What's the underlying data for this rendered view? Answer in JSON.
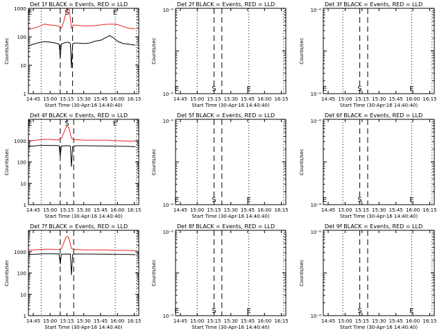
{
  "figure": {
    "background": "#ffffff",
    "axis_color": "#000000",
    "series_colors": {
      "Events": "#000000",
      "LLD": "#e8231f"
    }
  },
  "chart_data": [
    {
      "type": "line",
      "title": "Det 1f BLACK = Events, RED = LLD",
      "xlabel": "Start Time (30-Apr-16 14:40:40)",
      "ylabel": "Counts/sec",
      "xticks": [
        "14:45",
        "15:00",
        "15:15",
        "15:30",
        "15:45",
        "16:00",
        "16:15"
      ],
      "yscale": "log",
      "ylim": [
        1,
        1000
      ],
      "yticks": [
        "1",
        "10",
        "100",
        "1000"
      ],
      "markers": [
        {
          "label": "E",
          "time": "14:42",
          "line": "none",
          "pos": "top"
        },
        {
          "label": "",
          "time": "14:52",
          "line": "dotted",
          "pos": "top"
        },
        {
          "label": "",
          "time": "15:09",
          "line": "dashed",
          "pos": "top"
        },
        {
          "label": "S",
          "time": "15:15",
          "line": "none",
          "pos": "top"
        },
        {
          "label": "",
          "time": "15:20",
          "line": "dashed",
          "pos": "top"
        },
        {
          "label": "E",
          "time": "15:58",
          "line": "dotted",
          "pos": "top"
        },
        {
          "label": "",
          "time": "16:17",
          "line": "dotted",
          "pos": "top"
        }
      ],
      "series": [
        {
          "name": "LLD",
          "color": "#e8231f",
          "times": [
            "14:41",
            "14:45",
            "14:50",
            "14:55",
            "15:00",
            "15:05",
            "15:08",
            "15:10",
            "15:12",
            "15:14",
            "15:16",
            "15:17",
            "15:18",
            "15:19",
            "15:21",
            "15:25",
            "15:30",
            "15:35",
            "15:40",
            "15:45",
            "15:50",
            "15:55",
            "16:00",
            "16:05",
            "16:10",
            "16:16"
          ],
          "values": [
            180,
            200,
            230,
            280,
            260,
            250,
            230,
            200,
            330,
            650,
            1000,
            900,
            420,
            200,
            260,
            250,
            240,
            240,
            250,
            260,
            275,
            280,
            270,
            230,
            200,
            190
          ]
        },
        {
          "name": "Events",
          "color": "#000000",
          "times": [
            "14:41",
            "14:45",
            "14:50",
            "14:55",
            "15:00",
            "15:05",
            "15:08",
            "15:09",
            "15:10",
            "15:12",
            "15:14",
            "15:16",
            "15:18",
            "15:19",
            "15:20",
            "15:21",
            "15:25",
            "15:30",
            "15:35",
            "15:40",
            "15:45",
            "15:50",
            "15:53",
            "15:56",
            "16:00",
            "16:05",
            "16:10",
            "16:16"
          ],
          "values": [
            48,
            55,
            62,
            68,
            65,
            60,
            55,
            18,
            55,
            60,
            62,
            65,
            58,
            8,
            55,
            60,
            60,
            58,
            60,
            70,
            75,
            95,
            110,
            95,
            70,
            58,
            55,
            50
          ]
        }
      ]
    },
    {
      "type": "line",
      "title": "Det 2f BLACK = Events, RED = LLD",
      "xlabel": "Start Time (30-Apr-16 14:40:40)",
      "ylabel": "Counts/sec",
      "xticks": [
        "14:45",
        "15:00",
        "15:15",
        "15:30",
        "15:45",
        "16:00",
        "16:15"
      ],
      "yscale": "log",
      "ylim": [
        1e-08,
        1e-06
      ],
      "ylim_display": [
        "10⁻⁸",
        "10⁻⁶"
      ],
      "markers": [
        {
          "label": "E",
          "time": "14:42",
          "line": "none",
          "pos": "bottom"
        },
        {
          "label": "",
          "time": "15:00",
          "line": "dotted",
          "pos": "bottom"
        },
        {
          "label": "S",
          "time": "15:15",
          "line": "dashed",
          "pos": "bottom"
        },
        {
          "label": "",
          "time": "15:22",
          "line": "dashed",
          "pos": "bottom"
        },
        {
          "label": "E",
          "time": "15:46",
          "line": "dotted",
          "pos": "bottom"
        },
        {
          "label": "",
          "time": "16:17",
          "line": "dotted",
          "pos": "bottom"
        }
      ],
      "series": []
    },
    {
      "type": "line",
      "title": "Det 3f BLACK = Events, RED = LLD",
      "xlabel": "Start Time (30-Apr-16 14:40:40)",
      "ylabel": "Counts/sec",
      "xticks": [
        "14:45",
        "15:00",
        "15:15",
        "15:30",
        "15:45",
        "16:00",
        "16:15"
      ],
      "yscale": "log",
      "ylim": [
        1e-08,
        1e-06
      ],
      "ylim_display": [
        "10⁻⁸",
        "10⁻⁶"
      ],
      "markers": [
        {
          "label": "E",
          "time": "14:42",
          "line": "none",
          "pos": "bottom"
        },
        {
          "label": "",
          "time": "14:58",
          "line": "dotted",
          "pos": "bottom"
        },
        {
          "label": "S",
          "time": "15:13",
          "line": "dashed",
          "pos": "bottom"
        },
        {
          "label": "",
          "time": "15:20",
          "line": "dashed",
          "pos": "bottom"
        },
        {
          "label": "E",
          "time": "15:59",
          "line": "dotted",
          "pos": "bottom"
        },
        {
          "label": "",
          "time": "16:17",
          "line": "dotted",
          "pos": "bottom"
        }
      ],
      "series": []
    },
    {
      "type": "line",
      "title": "Det 4f BLACK = Events, RED = LLD",
      "xlabel": "Start Time (30-Apr-16 14:40:40)",
      "ylabel": "Counts/sec",
      "xticks": [
        "14:45",
        "15:00",
        "15:15",
        "15:30",
        "15:45",
        "16:00",
        "16:15"
      ],
      "yscale": "log",
      "ylim": [
        1,
        10000
      ],
      "yticks": [
        "1",
        "10",
        "100",
        "1000"
      ],
      "markers": [
        {
          "label": "E",
          "time": "14:42",
          "line": "none",
          "pos": "top"
        },
        {
          "label": "",
          "time": "14:52",
          "line": "dotted",
          "pos": "top"
        },
        {
          "label": "",
          "time": "15:09",
          "line": "dashed",
          "pos": "top"
        },
        {
          "label": "S",
          "time": "15:15",
          "line": "none",
          "pos": "top"
        },
        {
          "label": "",
          "time": "15:21",
          "line": "dashed",
          "pos": "top"
        },
        {
          "label": "E",
          "time": "15:58",
          "line": "dotted",
          "pos": "top"
        },
        {
          "label": "",
          "time": "16:17",
          "line": "dotted",
          "pos": "top"
        }
      ],
      "series": [
        {
          "name": "LLD",
          "color": "#e8231f",
          "times": [
            "14:41",
            "14:45",
            "14:50",
            "14:55",
            "15:00",
            "15:05",
            "15:08",
            "15:10",
            "15:12",
            "15:14",
            "15:15",
            "15:16",
            "15:17",
            "15:18",
            "15:19",
            "15:21",
            "15:25",
            "15:30",
            "15:40",
            "15:50",
            "16:00",
            "16:10",
            "16:16"
          ],
          "values": [
            950,
            1000,
            1100,
            1150,
            1150,
            1100,
            1100,
            1300,
            2200,
            4000,
            4800,
            4600,
            3500,
            2200,
            1300,
            1100,
            1100,
            1050,
            1050,
            1050,
            1000,
            950,
            950
          ]
        },
        {
          "name": "Events",
          "color": "#000000",
          "times": [
            "14:41",
            "14:45",
            "14:50",
            "14:55",
            "15:00",
            "15:05",
            "15:08",
            "15:09",
            "15:10",
            "15:12",
            "15:15",
            "15:18",
            "15:19",
            "15:20",
            "15:21",
            "15:25",
            "15:30",
            "15:40",
            "15:50",
            "16:00",
            "16:10",
            "16:16"
          ],
          "values": [
            540,
            560,
            590,
            600,
            600,
            590,
            580,
            180,
            560,
            570,
            580,
            570,
            60,
            520,
            560,
            580,
            580,
            570,
            560,
            550,
            540,
            520
          ]
        }
      ]
    },
    {
      "type": "line",
      "title": "Det 5f BLACK = Events, RED = LLD",
      "xlabel": "Start Time (30-Apr-16 14:40:40)",
      "ylabel": "Counts/sec",
      "xticks": [
        "14:45",
        "15:00",
        "15:15",
        "15:30",
        "15:45",
        "16:00",
        "16:15"
      ],
      "yscale": "log",
      "ylim": [
        1e-08,
        1e-06
      ],
      "ylim_display": [
        "10⁻⁸",
        "10⁻⁶"
      ],
      "markers": [
        {
          "label": "E",
          "time": "14:42",
          "line": "none",
          "pos": "bottom"
        },
        {
          "label": "",
          "time": "15:00",
          "line": "dotted",
          "pos": "bottom"
        },
        {
          "label": "S",
          "time": "15:15",
          "line": "dashed",
          "pos": "bottom"
        },
        {
          "label": "",
          "time": "15:22",
          "line": "dashed",
          "pos": "bottom"
        },
        {
          "label": "E",
          "time": "15:46",
          "line": "dotted",
          "pos": "bottom"
        },
        {
          "label": "",
          "time": "16:17",
          "line": "dotted",
          "pos": "bottom"
        }
      ],
      "series": []
    },
    {
      "type": "line",
      "title": "Det 6f BLACK = Events, RED = LLD",
      "xlabel": "Start Time (30-Apr-16 14:40:40)",
      "ylabel": "Counts/sec",
      "xticks": [
        "14:45",
        "15:00",
        "15:15",
        "15:30",
        "15:45",
        "16:00",
        "16:15"
      ],
      "yscale": "log",
      "ylim": [
        1e-08,
        1e-06
      ],
      "ylim_display": [
        "10⁻⁸",
        "10⁻⁶"
      ],
      "markers": [
        {
          "label": "E",
          "time": "14:42",
          "line": "none",
          "pos": "bottom"
        },
        {
          "label": "",
          "time": "14:58",
          "line": "dotted",
          "pos": "bottom"
        },
        {
          "label": "S",
          "time": "15:13",
          "line": "dashed",
          "pos": "bottom"
        },
        {
          "label": "",
          "time": "15:20",
          "line": "dashed",
          "pos": "bottom"
        },
        {
          "label": "E",
          "time": "15:59",
          "line": "dotted",
          "pos": "bottom"
        },
        {
          "label": "",
          "time": "16:17",
          "line": "dotted",
          "pos": "bottom"
        }
      ],
      "series": []
    },
    {
      "type": "line",
      "title": "Det 7f BLACK = Events, RED = LLD",
      "xlabel": "Start Time (30-Apr-16 14:40:40)",
      "ylabel": "Counts/sec",
      "xticks": [
        "14:45",
        "15:00",
        "15:15",
        "15:30",
        "15:45",
        "16:00",
        "16:15"
      ],
      "yscale": "log",
      "ylim": [
        1,
        10000
      ],
      "yticks": [
        "1",
        "10",
        "100",
        "1000"
      ],
      "markers": [
        {
          "label": "",
          "time": "14:52",
          "line": "dotted",
          "pos": "top"
        },
        {
          "label": "",
          "time": "15:09",
          "line": "dashed",
          "pos": "top"
        },
        {
          "label": "",
          "time": "15:21",
          "line": "dashed",
          "pos": "top"
        },
        {
          "label": "",
          "time": "15:58",
          "line": "dotted",
          "pos": "top"
        },
        {
          "label": "",
          "time": "16:17",
          "line": "dotted",
          "pos": "top"
        }
      ],
      "series": [
        {
          "name": "LLD",
          "color": "#e8231f",
          "times": [
            "14:41",
            "14:45",
            "14:50",
            "14:55",
            "15:00",
            "15:05",
            "15:08",
            "15:10",
            "15:12",
            "15:14",
            "15:15",
            "15:16",
            "15:17",
            "15:18",
            "15:19",
            "15:21",
            "15:25",
            "15:30",
            "15:40",
            "15:50",
            "16:00",
            "16:10",
            "16:16"
          ],
          "values": [
            1150,
            1200,
            1250,
            1300,
            1300,
            1250,
            1250,
            1400,
            2500,
            4600,
            5200,
            5000,
            3800,
            2300,
            1400,
            1250,
            1250,
            1200,
            1200,
            1200,
            1150,
            1150,
            1100
          ]
        },
        {
          "name": "Events",
          "color": "#000000",
          "times": [
            "14:41",
            "14:45",
            "14:50",
            "14:55",
            "15:00",
            "15:05",
            "15:08",
            "15:09",
            "15:10",
            "15:12",
            "15:15",
            "15:18",
            "15:19",
            "15:20",
            "15:21",
            "15:25",
            "15:30",
            "15:40",
            "15:50",
            "16:00",
            "16:10",
            "16:16"
          ],
          "values": [
            730,
            750,
            780,
            800,
            800,
            790,
            780,
            260,
            760,
            770,
            780,
            770,
            80,
            700,
            760,
            780,
            780,
            770,
            760,
            750,
            740,
            720
          ]
        }
      ]
    },
    {
      "type": "line",
      "title": "Det 8f BLACK = Events, RED = LLD",
      "xlabel": "Start Time (30-Apr-16 14:40:40)",
      "ylabel": "Counts/sec",
      "xticks": [
        "14:45",
        "15:00",
        "15:15",
        "15:30",
        "15:45",
        "16:00",
        "16:15"
      ],
      "yscale": "log",
      "ylim": [
        1e-08,
        1e-06
      ],
      "ylim_display": [
        "10⁻⁸",
        "10⁻⁶"
      ],
      "markers": [
        {
          "label": "E",
          "time": "14:42",
          "line": "none",
          "pos": "bottom"
        },
        {
          "label": "",
          "time": "15:00",
          "line": "dotted",
          "pos": "bottom"
        },
        {
          "label": "S",
          "time": "15:15",
          "line": "dashed",
          "pos": "bottom"
        },
        {
          "label": "",
          "time": "15:22",
          "line": "dashed",
          "pos": "bottom"
        },
        {
          "label": "E",
          "time": "15:46",
          "line": "dotted",
          "pos": "bottom"
        },
        {
          "label": "",
          "time": "16:17",
          "line": "dotted",
          "pos": "bottom"
        }
      ],
      "series": []
    },
    {
      "type": "line",
      "title": "Det 9f BLACK = Events, RED = LLD",
      "xlabel": "Start Time (30-Apr-16 14:40:40)",
      "ylabel": "Counts/sec",
      "xticks": [
        "14:45",
        "15:00",
        "15:15",
        "15:30",
        "15:45",
        "16:00",
        "16:15"
      ],
      "yscale": "log",
      "ylim": [
        1e-08,
        1e-06
      ],
      "ylim_display": [
        "10⁻⁸",
        "10⁻⁶"
      ],
      "markers": [
        {
          "label": "",
          "time": "14:58",
          "line": "dotted",
          "pos": "bottom"
        },
        {
          "label": "S",
          "time": "15:13",
          "line": "dashed",
          "pos": "bottom"
        },
        {
          "label": "",
          "time": "15:20",
          "line": "dashed",
          "pos": "bottom"
        },
        {
          "label": "E",
          "time": "15:59",
          "line": "dotted",
          "pos": "bottom"
        },
        {
          "label": "",
          "time": "16:17",
          "line": "dotted",
          "pos": "bottom"
        }
      ],
      "series": []
    }
  ]
}
